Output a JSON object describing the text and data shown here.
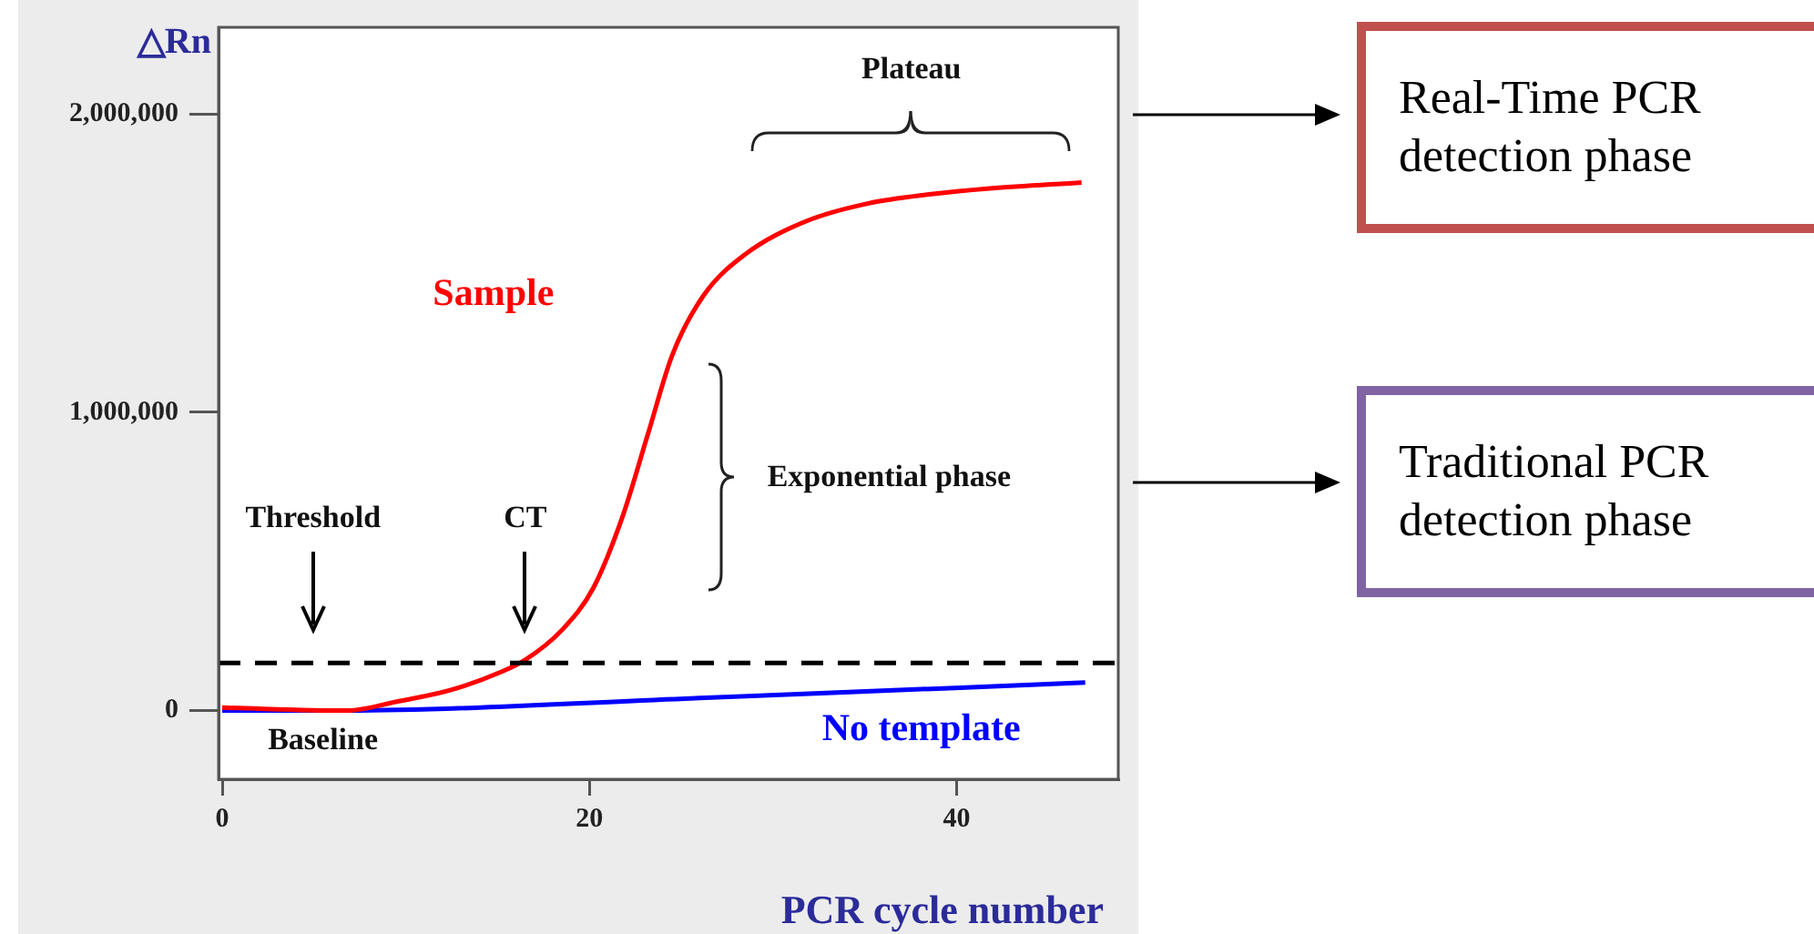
{
  "chart_data": {
    "type": "line",
    "xlabel": "PCR cycle number",
    "ylabel": "△Rn",
    "xlim": [
      -0.2,
      48.8
    ],
    "ylim": [
      -230000,
      2290000
    ],
    "xticks": [
      0,
      20,
      40
    ],
    "yticks": [
      {
        "value": 0,
        "label": "0"
      },
      {
        "value": 1000000,
        "label": "1,000,000"
      },
      {
        "value": 2000000,
        "label": "2,000,000"
      }
    ],
    "grid": false,
    "legend": false,
    "series": [
      {
        "name": "Sample",
        "color": "#ff0000",
        "x": [
          0,
          6.8,
          9.5,
          12.5,
          15.2,
          16.5,
          18.5,
          20.2,
          21.8,
          23.2,
          24.5,
          26.2,
          28.5,
          31.8,
          35.2,
          38.5,
          41.8,
          46.8
        ],
        "values": [
          10000,
          0,
          30000,
          70000,
          130000,
          170000,
          270000,
          410000,
          650000,
          930000,
          1190000,
          1390000,
          1530000,
          1640000,
          1700000,
          1730000,
          1750000,
          1770000
        ]
      },
      {
        "name": "No template",
        "color": "#0000ff",
        "x": [
          0,
          6.8,
          25.2,
          47
        ],
        "values": [
          0,
          0,
          40000,
          94000
        ]
      }
    ],
    "ref_lines": [
      {
        "axis": "y",
        "value": 160000,
        "color": "#000000",
        "line_style": "dashed"
      }
    ],
    "annotations": [
      "Threshold",
      "CT",
      "Exponential phase",
      "Plateau",
      "Baseline",
      "Real-Time PCR detection phase",
      "Traditional PCR detection phase"
    ]
  }
}
